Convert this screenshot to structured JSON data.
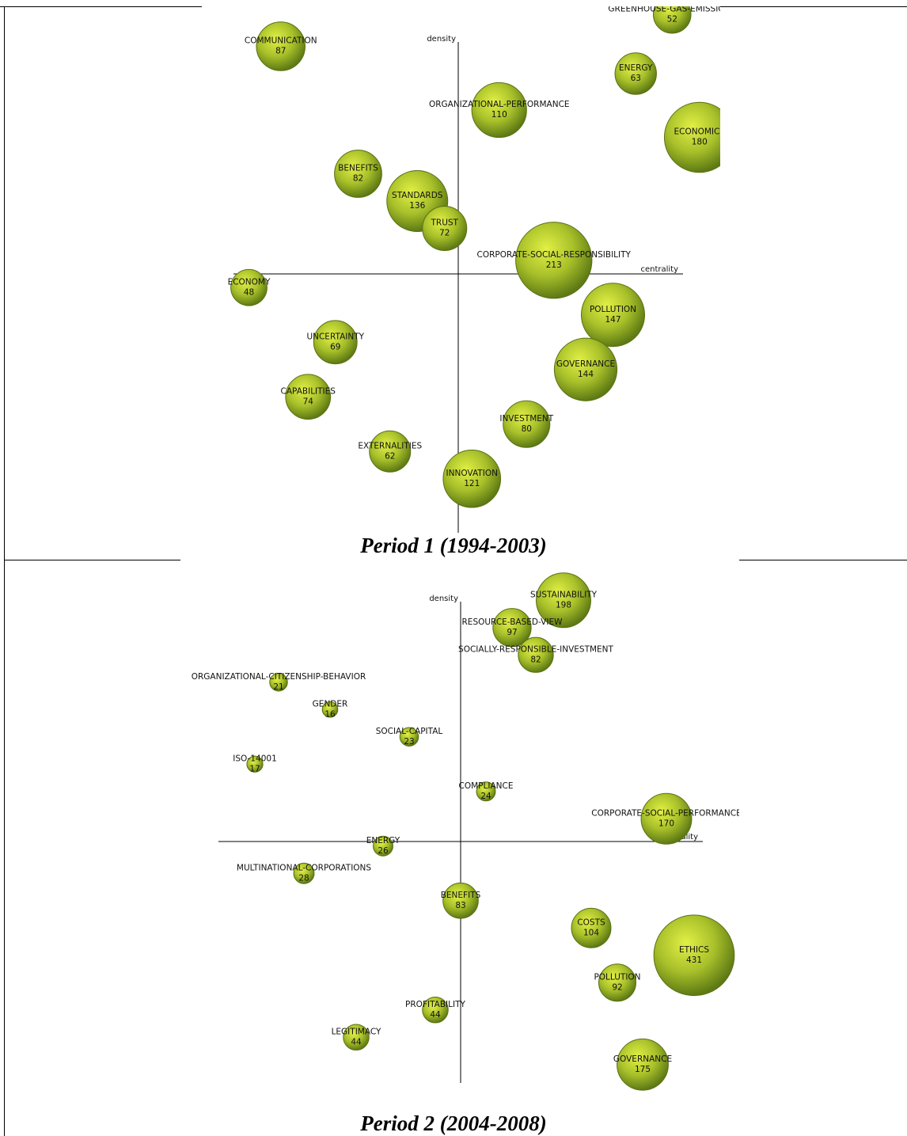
{
  "chart_data": [
    {
      "type": "scatter",
      "caption": "Period 1 (1994-2003)",
      "xlabel": "centrality",
      "ylabel": "density",
      "points": [
        {
          "label": "GREENHOUSE-GAS-EMISSIONS",
          "value": 52,
          "x": 2.35,
          "y": 2.85
        },
        {
          "label": "COMMUNICATION",
          "value": 87,
          "x": -1.95,
          "y": 2.5
        },
        {
          "label": "ENERGY",
          "value": 63,
          "x": 1.95,
          "y": 2.2
        },
        {
          "label": "ORGANIZATIONAL-PERFORMANCE",
          "value": 110,
          "x": 0.45,
          "y": 1.8
        },
        {
          "label": "ECONOMICS",
          "value": 180,
          "x": 2.65,
          "y": 1.5
        },
        {
          "label": "BENEFITS",
          "value": 82,
          "x": -1.1,
          "y": 1.1
        },
        {
          "label": "STANDARDS",
          "value": 136,
          "x": -0.45,
          "y": 0.8
        },
        {
          "label": "TRUST",
          "value": 72,
          "x": -0.15,
          "y": 0.5
        },
        {
          "label": "CORPORATE-SOCIAL-RESPONSIBILITY",
          "value": 213,
          "x": 1.05,
          "y": 0.15
        },
        {
          "label": "ECONOMY",
          "value": 48,
          "x": -2.3,
          "y": -0.15
        },
        {
          "label": "POLLUTION",
          "value": 147,
          "x": 1.7,
          "y": -0.45
        },
        {
          "label": "UNCERTAINTY",
          "value": 69,
          "x": -1.35,
          "y": -0.75
        },
        {
          "label": "GOVERNANCE",
          "value": 144,
          "x": 1.4,
          "y": -1.05
        },
        {
          "label": "CAPABILITIES",
          "value": 74,
          "x": -1.65,
          "y": -1.35
        },
        {
          "label": "INVESTMENT",
          "value": 80,
          "x": 0.75,
          "y": -1.65
        },
        {
          "label": "EXTERNALITIES",
          "value": 62,
          "x": -0.75,
          "y": -1.95
        },
        {
          "label": "INNOVATION",
          "value": 121,
          "x": 0.15,
          "y": -2.25
        }
      ]
    },
    {
      "type": "scatter",
      "caption": "Period 2 (2004-2008)",
      "xlabel": "centrality",
      "ylabel": "density",
      "points": [
        {
          "label": "SUSTAINABILITY",
          "value": 198,
          "x": 1.3,
          "y": 2.65
        },
        {
          "label": "RESOURCE-BASED-VIEW",
          "value": 97,
          "x": 0.65,
          "y": 2.35
        },
        {
          "label": "SOCIALLY-RESPONSIBLE-INVESTMENT",
          "value": 82,
          "x": 0.95,
          "y": 2.05
        },
        {
          "label": "ORGANIZATIONAL-CITIZENSHIP-BEHAVIOR",
          "value": 21,
          "x": -2.3,
          "y": 1.75
        },
        {
          "label": "GENDER",
          "value": 16,
          "x": -1.65,
          "y": 1.45
        },
        {
          "label": "SOCIAL-CAPITAL",
          "value": 23,
          "x": -0.65,
          "y": 1.15
        },
        {
          "label": "ISO-14001",
          "value": 17,
          "x": -2.6,
          "y": 0.85
        },
        {
          "label": "COMPLIANCE",
          "value": 24,
          "x": 0.32,
          "y": 0.55
        },
        {
          "label": "CORPORATE-SOCIAL-PERFORMANCE",
          "value": 170,
          "x": 2.6,
          "y": 0.25
        },
        {
          "label": "ENERGY",
          "value": 26,
          "x": -0.98,
          "y": -0.05
        },
        {
          "label": "MULTINATIONAL-CORPORATIONS",
          "value": 28,
          "x": -1.98,
          "y": -0.35
        },
        {
          "label": "BENEFITS",
          "value": 83,
          "x": 0.0,
          "y": -0.65
        },
        {
          "label": "COSTS",
          "value": 104,
          "x": 1.65,
          "y": -0.95
        },
        {
          "label": "ETHICS",
          "value": 431,
          "x": 2.95,
          "y": -1.25
        },
        {
          "label": "POLLUTION",
          "value": 92,
          "x": 1.98,
          "y": -1.55
        },
        {
          "label": "PROFITABILITY",
          "value": 44,
          "x": -0.32,
          "y": -1.85
        },
        {
          "label": "LEGITIMACY",
          "value": 44,
          "x": -1.32,
          "y": -2.15
        },
        {
          "label": "GOVERNANCE",
          "value": 175,
          "x": 2.3,
          "y": -2.45
        }
      ]
    }
  ]
}
